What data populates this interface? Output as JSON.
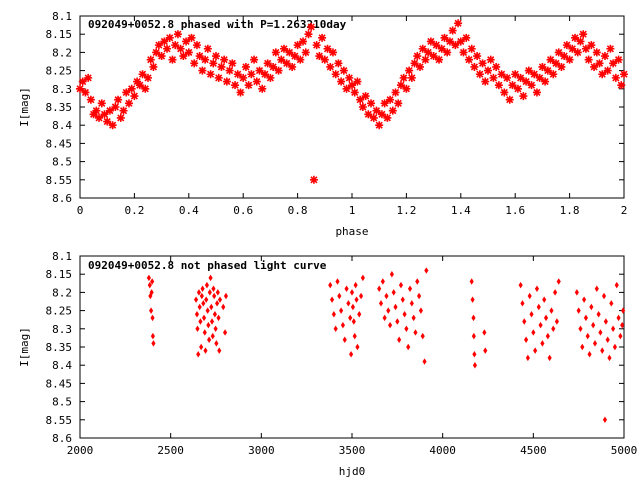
{
  "chart_data": [
    {
      "type": "scatter",
      "title": "092049+0052.8 phased with P=1.263210day",
      "xlabel": "phase",
      "ylabel": "I[mag]",
      "xlim": [
        0,
        2
      ],
      "ylim": [
        8.1,
        8.6
      ],
      "y_inverted": true,
      "grid": false,
      "color": "#ff0000",
      "xticks": [
        "0",
        "0.2",
        "0.4",
        "0.6",
        "0.8",
        "1",
        "1.2",
        "1.4",
        "1.6",
        "1.8",
        "2"
      ],
      "yticks": [
        "8.1",
        "8.15",
        "8.2",
        "8.25",
        "8.3",
        "8.35",
        "8.4",
        "8.45",
        "8.5",
        "8.55",
        "8.6"
      ],
      "points": [
        [
          0.0,
          8.3
        ],
        [
          0.01,
          8.28
        ],
        [
          0.02,
          8.31
        ],
        [
          0.03,
          8.27
        ],
        [
          0.04,
          8.33
        ],
        [
          0.05,
          8.37
        ],
        [
          0.06,
          8.36
        ],
        [
          0.07,
          8.38
        ],
        [
          0.08,
          8.34
        ],
        [
          0.09,
          8.37
        ],
        [
          0.1,
          8.39
        ],
        [
          0.11,
          8.36
        ],
        [
          0.12,
          8.4
        ],
        [
          0.13,
          8.35
        ],
        [
          0.14,
          8.33
        ],
        [
          0.15,
          8.38
        ],
        [
          0.16,
          8.36
        ],
        [
          0.17,
          8.31
        ],
        [
          0.18,
          8.34
        ],
        [
          0.19,
          8.3
        ],
        [
          0.2,
          8.32
        ],
        [
          0.21,
          8.28
        ],
        [
          0.22,
          8.29
        ],
        [
          0.23,
          8.26
        ],
        [
          0.24,
          8.3
        ],
        [
          0.25,
          8.27
        ],
        [
          0.26,
          8.22
        ],
        [
          0.27,
          8.24
        ],
        [
          0.28,
          8.2
        ],
        [
          0.29,
          8.18
        ],
        [
          0.3,
          8.21
        ],
        [
          0.31,
          8.17
        ],
        [
          0.32,
          8.19
        ],
        [
          0.33,
          8.16
        ],
        [
          0.34,
          8.22
        ],
        [
          0.35,
          8.18
        ],
        [
          0.36,
          8.15
        ],
        [
          0.37,
          8.19
        ],
        [
          0.38,
          8.21
        ],
        [
          0.39,
          8.17
        ],
        [
          0.4,
          8.2
        ],
        [
          0.41,
          8.16
        ],
        [
          0.42,
          8.23
        ],
        [
          0.43,
          8.18
        ],
        [
          0.44,
          8.21
        ],
        [
          0.45,
          8.25
        ],
        [
          0.46,
          8.22
        ],
        [
          0.47,
          8.19
        ],
        [
          0.48,
          8.26
        ],
        [
          0.49,
          8.23
        ],
        [
          0.5,
          8.21
        ],
        [
          0.51,
          8.27
        ],
        [
          0.52,
          8.24
        ],
        [
          0.53,
          8.22
        ],
        [
          0.54,
          8.28
        ],
        [
          0.55,
          8.25
        ],
        [
          0.56,
          8.23
        ],
        [
          0.57,
          8.29
        ],
        [
          0.58,
          8.26
        ],
        [
          0.59,
          8.31
        ],
        [
          0.6,
          8.27
        ],
        [
          0.61,
          8.24
        ],
        [
          0.62,
          8.29
        ],
        [
          0.63,
          8.26
        ],
        [
          0.64,
          8.22
        ],
        [
          0.65,
          8.28
        ],
        [
          0.66,
          8.25
        ],
        [
          0.67,
          8.3
        ],
        [
          0.68,
          8.26
        ],
        [
          0.69,
          8.23
        ],
        [
          0.7,
          8.27
        ],
        [
          0.71,
          8.24
        ],
        [
          0.72,
          8.2
        ],
        [
          0.73,
          8.25
        ],
        [
          0.74,
          8.22
        ],
        [
          0.75,
          8.19
        ],
        [
          0.76,
          8.23
        ],
        [
          0.77,
          8.2
        ],
        [
          0.78,
          8.24
        ],
        [
          0.79,
          8.21
        ],
        [
          0.8,
          8.18
        ],
        [
          0.81,
          8.22
        ],
        [
          0.82,
          8.17
        ],
        [
          0.83,
          8.2
        ],
        [
          0.84,
          8.15
        ],
        [
          0.85,
          8.13
        ],
        [
          0.86,
          8.55
        ],
        [
          0.87,
          8.18
        ],
        [
          0.88,
          8.21
        ],
        [
          0.89,
          8.16
        ],
        [
          0.9,
          8.22
        ],
        [
          0.91,
          8.19
        ],
        [
          0.92,
          8.24
        ],
        [
          0.93,
          8.2
        ],
        [
          0.94,
          8.26
        ],
        [
          0.95,
          8.23
        ],
        [
          0.96,
          8.28
        ],
        [
          0.97,
          8.25
        ],
        [
          0.98,
          8.3
        ],
        [
          0.99,
          8.27
        ],
        [
          1.0,
          8.29
        ],
        [
          1.01,
          8.31
        ],
        [
          1.02,
          8.28
        ],
        [
          1.03,
          8.33
        ],
        [
          1.04,
          8.35
        ],
        [
          1.05,
          8.32
        ],
        [
          1.06,
          8.37
        ],
        [
          1.07,
          8.34
        ],
        [
          1.08,
          8.38
        ],
        [
          1.09,
          8.36
        ],
        [
          1.1,
          8.4
        ],
        [
          1.11,
          8.37
        ],
        [
          1.12,
          8.34
        ],
        [
          1.13,
          8.38
        ],
        [
          1.14,
          8.33
        ],
        [
          1.15,
          8.36
        ],
        [
          1.16,
          8.31
        ],
        [
          1.17,
          8.34
        ],
        [
          1.18,
          8.29
        ],
        [
          1.19,
          8.27
        ],
        [
          1.2,
          8.3
        ],
        [
          1.21,
          8.25
        ],
        [
          1.22,
          8.27
        ],
        [
          1.23,
          8.23
        ],
        [
          1.24,
          8.21
        ],
        [
          1.25,
          8.24
        ],
        [
          1.26,
          8.19
        ],
        [
          1.27,
          8.22
        ],
        [
          1.28,
          8.2
        ],
        [
          1.29,
          8.17
        ],
        [
          1.3,
          8.21
        ],
        [
          1.31,
          8.18
        ],
        [
          1.32,
          8.22
        ],
        [
          1.33,
          8.19
        ],
        [
          1.34,
          8.16
        ],
        [
          1.35,
          8.2
        ],
        [
          1.36,
          8.17
        ],
        [
          1.37,
          8.14
        ],
        [
          1.38,
          8.18
        ],
        [
          1.39,
          8.12
        ],
        [
          1.4,
          8.17
        ],
        [
          1.41,
          8.2
        ],
        [
          1.42,
          8.16
        ],
        [
          1.43,
          8.22
        ],
        [
          1.44,
          8.19
        ],
        [
          1.45,
          8.24
        ],
        [
          1.46,
          8.21
        ],
        [
          1.47,
          8.26
        ],
        [
          1.48,
          8.23
        ],
        [
          1.49,
          8.28
        ],
        [
          1.5,
          8.25
        ],
        [
          1.51,
          8.22
        ],
        [
          1.52,
          8.27
        ],
        [
          1.53,
          8.24
        ],
        [
          1.54,
          8.29
        ],
        [
          1.55,
          8.26
        ],
        [
          1.56,
          8.31
        ],
        [
          1.57,
          8.27
        ],
        [
          1.58,
          8.33
        ],
        [
          1.59,
          8.29
        ],
        [
          1.6,
          8.26
        ],
        [
          1.61,
          8.3
        ],
        [
          1.62,
          8.27
        ],
        [
          1.63,
          8.32
        ],
        [
          1.64,
          8.28
        ],
        [
          1.65,
          8.25
        ],
        [
          1.66,
          8.29
        ],
        [
          1.67,
          8.26
        ],
        [
          1.68,
          8.31
        ],
        [
          1.69,
          8.27
        ],
        [
          1.7,
          8.24
        ],
        [
          1.71,
          8.28
        ],
        [
          1.72,
          8.25
        ],
        [
          1.73,
          8.22
        ],
        [
          1.74,
          8.26
        ],
        [
          1.75,
          8.23
        ],
        [
          1.76,
          8.2
        ],
        [
          1.77,
          8.24
        ],
        [
          1.78,
          8.21
        ],
        [
          1.79,
          8.18
        ],
        [
          1.8,
          8.22
        ],
        [
          1.81,
          8.19
        ],
        [
          1.82,
          8.16
        ],
        [
          1.83,
          8.2
        ],
        [
          1.84,
          8.17
        ],
        [
          1.85,
          8.15
        ],
        [
          1.86,
          8.19
        ],
        [
          1.87,
          8.22
        ],
        [
          1.88,
          8.18
        ],
        [
          1.89,
          8.24
        ],
        [
          1.9,
          8.2
        ],
        [
          1.91,
          8.23
        ],
        [
          1.92,
          8.26
        ],
        [
          1.93,
          8.21
        ],
        [
          1.94,
          8.25
        ],
        [
          1.95,
          8.19
        ],
        [
          1.96,
          8.23
        ],
        [
          1.97,
          8.27
        ],
        [
          1.98,
          8.22
        ],
        [
          1.99,
          8.29
        ],
        [
          2.0,
          8.26
        ]
      ]
    },
    {
      "type": "scatter",
      "title": "092049+0052.8 not phased light curve",
      "xlabel": "hjd0",
      "ylabel": "I[mag]",
      "xlim": [
        2000,
        5000
      ],
      "ylim": [
        8.1,
        8.6
      ],
      "y_inverted": true,
      "grid": false,
      "color": "#ff0000",
      "xticks": [
        "2000",
        "2500",
        "3000",
        "3500",
        "4000",
        "4500",
        "5000"
      ],
      "yticks": [
        "8.1",
        "8.15",
        "8.2",
        "8.25",
        "8.3",
        "8.35",
        "8.4",
        "8.45",
        "8.5",
        "8.55",
        "8.6"
      ],
      "points": [
        [
          2380,
          8.16
        ],
        [
          2385,
          8.18
        ],
        [
          2388,
          8.21
        ],
        [
          2392,
          8.25
        ],
        [
          2395,
          8.2
        ],
        [
          2398,
          8.17
        ],
        [
          2402,
          8.32
        ],
        [
          2405,
          8.34
        ],
        [
          2400,
          8.27
        ],
        [
          2640,
          8.22
        ],
        [
          2645,
          8.26
        ],
        [
          2648,
          8.3
        ],
        [
          2652,
          8.37
        ],
        [
          2656,
          8.2
        ],
        [
          2660,
          8.24
        ],
        [
          2664,
          8.28
        ],
        [
          2668,
          8.35
        ],
        [
          2672,
          8.21
        ],
        [
          2676,
          8.19
        ],
        [
          2680,
          8.23
        ],
        [
          2684,
          8.27
        ],
        [
          2688,
          8.31
        ],
        [
          2692,
          8.36
        ],
        [
          2696,
          8.22
        ],
        [
          2700,
          8.18
        ],
        [
          2704,
          8.25
        ],
        [
          2708,
          8.29
        ],
        [
          2712,
          8.33
        ],
        [
          2716,
          8.2
        ],
        [
          2720,
          8.16
        ],
        [
          2724,
          8.24
        ],
        [
          2728,
          8.28
        ],
        [
          2732,
          8.32
        ],
        [
          2736,
          8.19
        ],
        [
          2740,
          8.21
        ],
        [
          2744,
          8.26
        ],
        [
          2748,
          8.3
        ],
        [
          2752,
          8.34
        ],
        [
          2756,
          8.23
        ],
        [
          2760,
          8.2
        ],
        [
          2764,
          8.27
        ],
        [
          2768,
          8.36
        ],
        [
          2772,
          8.22
        ],
        [
          2790,
          8.24
        ],
        [
          2800,
          8.31
        ],
        [
          2805,
          8.21
        ],
        [
          3380,
          8.18
        ],
        [
          3390,
          8.22
        ],
        [
          3400,
          8.26
        ],
        [
          3410,
          8.3
        ],
        [
          3420,
          8.17
        ],
        [
          3430,
          8.21
        ],
        [
          3440,
          8.25
        ],
        [
          3450,
          8.29
        ],
        [
          3460,
          8.33
        ],
        [
          3470,
          8.19
        ],
        [
          3480,
          8.23
        ],
        [
          3490,
          8.27
        ],
        [
          3495,
          8.37
        ],
        [
          3500,
          8.2
        ],
        [
          3505,
          8.24
        ],
        [
          3510,
          8.28
        ],
        [
          3515,
          8.32
        ],
        [
          3520,
          8.18
        ],
        [
          3525,
          8.22
        ],
        [
          3530,
          8.35
        ],
        [
          3540,
          8.26
        ],
        [
          3550,
          8.21
        ],
        [
          3560,
          8.16
        ],
        [
          3650,
          8.19
        ],
        [
          3660,
          8.23
        ],
        [
          3670,
          8.17
        ],
        [
          3680,
          8.27
        ],
        [
          3690,
          8.21
        ],
        [
          3700,
          8.25
        ],
        [
          3710,
          8.29
        ],
        [
          3720,
          8.15
        ],
        [
          3730,
          8.2
        ],
        [
          3740,
          8.24
        ],
        [
          3750,
          8.28
        ],
        [
          3760,
          8.33
        ],
        [
          3770,
          8.18
        ],
        [
          3780,
          8.22
        ],
        [
          3790,
          8.26
        ],
        [
          3800,
          8.3
        ],
        [
          3810,
          8.35
        ],
        [
          3820,
          8.19
        ],
        [
          3830,
          8.23
        ],
        [
          3840,
          8.27
        ],
        [
          3850,
          8.31
        ],
        [
          3860,
          8.17
        ],
        [
          3870,
          8.21
        ],
        [
          3880,
          8.25
        ],
        [
          3890,
          8.32
        ],
        [
          3900,
          8.39
        ],
        [
          3910,
          8.14
        ],
        [
          4160,
          8.17
        ],
        [
          4165,
          8.22
        ],
        [
          4170,
          8.27
        ],
        [
          4172,
          8.32
        ],
        [
          4175,
          8.37
        ],
        [
          4178,
          8.4
        ],
        [
          4230,
          8.31
        ],
        [
          4235,
          8.36
        ],
        [
          4430,
          8.18
        ],
        [
          4440,
          8.23
        ],
        [
          4450,
          8.28
        ],
        [
          4460,
          8.33
        ],
        [
          4470,
          8.38
        ],
        [
          4480,
          8.21
        ],
        [
          4490,
          8.26
        ],
        [
          4500,
          8.31
        ],
        [
          4510,
          8.36
        ],
        [
          4520,
          8.19
        ],
        [
          4530,
          8.24
        ],
        [
          4540,
          8.29
        ],
        [
          4550,
          8.34
        ],
        [
          4560,
          8.22
        ],
        [
          4570,
          8.27
        ],
        [
          4580,
          8.32
        ],
        [
          4590,
          8.38
        ],
        [
          4600,
          8.25
        ],
        [
          4610,
          8.3
        ],
        [
          4620,
          8.2
        ],
        [
          4630,
          8.28
        ],
        [
          4640,
          8.17
        ],
        [
          4740,
          8.2
        ],
        [
          4750,
          8.25
        ],
        [
          4760,
          8.3
        ],
        [
          4770,
          8.35
        ],
        [
          4780,
          8.22
        ],
        [
          4790,
          8.27
        ],
        [
          4800,
          8.32
        ],
        [
          4810,
          8.37
        ],
        [
          4820,
          8.24
        ],
        [
          4830,
          8.29
        ],
        [
          4840,
          8.34
        ],
        [
          4850,
          8.19
        ],
        [
          4860,
          8.26
        ],
        [
          4870,
          8.31
        ],
        [
          4880,
          8.36
        ],
        [
          4890,
          8.21
        ],
        [
          4895,
          8.55
        ],
        [
          4900,
          8.28
        ],
        [
          4910,
          8.33
        ],
        [
          4920,
          8.38
        ],
        [
          4930,
          8.23
        ],
        [
          4940,
          8.3
        ],
        [
          4950,
          8.35
        ],
        [
          4960,
          8.18
        ],
        [
          4970,
          8.27
        ],
        [
          4980,
          8.32
        ],
        [
          4990,
          8.29
        ],
        [
          4995,
          8.25
        ]
      ]
    }
  ]
}
